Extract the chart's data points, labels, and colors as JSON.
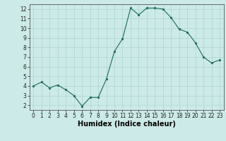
{
  "x": [
    0,
    1,
    2,
    3,
    4,
    5,
    6,
    7,
    8,
    9,
    10,
    11,
    12,
    13,
    14,
    15,
    16,
    17,
    18,
    19,
    20,
    21,
    22,
    23
  ],
  "y": [
    4.0,
    4.4,
    3.8,
    4.1,
    3.6,
    3.0,
    1.9,
    2.8,
    2.8,
    4.7,
    7.6,
    8.9,
    12.1,
    11.4,
    12.1,
    12.1,
    12.0,
    11.1,
    9.9,
    9.6,
    8.5,
    7.0,
    6.4,
    6.7
  ],
  "line_color": "#1a6b5a",
  "marker": "o",
  "marker_size": 1.8,
  "bg_color": "#cceae7",
  "grid_color": "#aad4d0",
  "xlabel": "Humidex (Indice chaleur)",
  "xlim": [
    -0.5,
    23.5
  ],
  "ylim": [
    1.5,
    12.5
  ],
  "yticks": [
    2,
    3,
    4,
    5,
    6,
    7,
    8,
    9,
    10,
    11,
    12
  ],
  "xticks": [
    0,
    1,
    2,
    3,
    4,
    5,
    6,
    7,
    8,
    9,
    10,
    11,
    12,
    13,
    14,
    15,
    16,
    17,
    18,
    19,
    20,
    21,
    22,
    23
  ],
  "tick_fontsize": 5.5,
  "xlabel_fontsize": 7.0
}
